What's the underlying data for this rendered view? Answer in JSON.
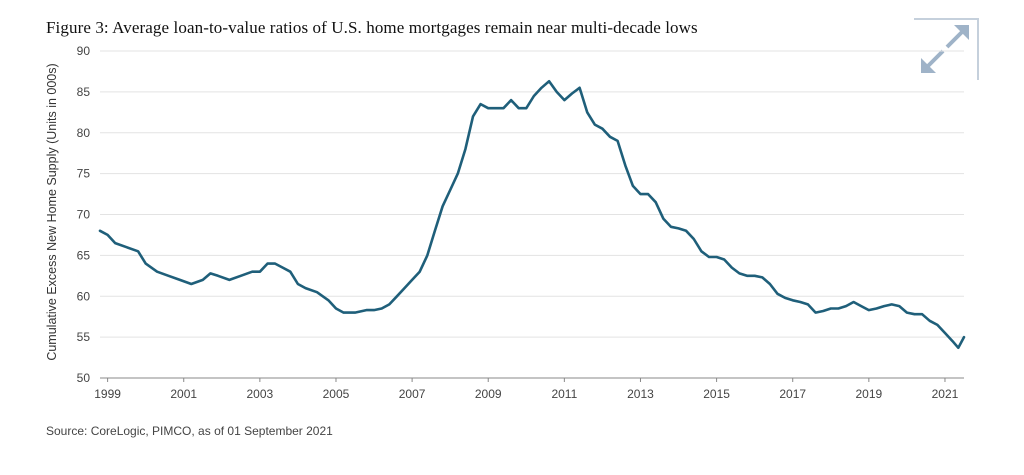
{
  "figure": {
    "title": "Figure 3: Average loan-to-value ratios of U.S. home mortgages remain near multi-decade lows",
    "source": "Source: CoreLogic, PIMCO, as of 01 September 2021",
    "expand_icon": "expand-arrows-icon"
  },
  "chart_data": {
    "type": "line",
    "title": "Figure 3: Average loan-to-value ratios of U.S. home mortgages remain near multi-decade lows",
    "xlabel": "",
    "ylabel": "Cumulative Excess New Home Supply (Units in 000s)",
    "xlim": [
      1998.8,
      2021.5
    ],
    "ylim": [
      50,
      90
    ],
    "x_ticks": [
      "1999",
      "2001",
      "2003",
      "2005",
      "2007",
      "2009",
      "2011",
      "2013",
      "2015",
      "2017",
      "2019",
      "2021"
    ],
    "y_ticks": [
      "50",
      "55",
      "60",
      "65",
      "70",
      "75",
      "80",
      "85",
      "90"
    ],
    "grid": "horizontal",
    "line_color": "#1f5f7a",
    "series": [
      {
        "x": [
          1998.8,
          1999.0,
          1999.2,
          1999.5,
          1999.8,
          2000.0,
          2000.3,
          2000.6,
          2000.9,
          2001.2,
          2001.5,
          2001.7,
          2001.9,
          2002.2,
          2002.5,
          2002.8,
          2003.0,
          2003.2,
          2003.4,
          2003.6,
          2003.8,
          2004.0,
          2004.2,
          2004.5,
          2004.8,
          2005.0,
          2005.2,
          2005.5,
          2005.8,
          2006.0,
          2006.2,
          2006.4,
          2006.6,
          2006.8,
          2007.0,
          2007.2,
          2007.4,
          2007.6,
          2007.8,
          2008.0,
          2008.2,
          2008.4,
          2008.6,
          2008.8,
          2009.0,
          2009.2,
          2009.4,
          2009.6,
          2009.8,
          2010.0,
          2010.2,
          2010.4,
          2010.6,
          2010.8,
          2011.0,
          2011.2,
          2011.4,
          2011.6,
          2011.8,
          2012.0,
          2012.2,
          2012.4,
          2012.6,
          2012.8,
          2013.0,
          2013.2,
          2013.4,
          2013.6,
          2013.8,
          2014.0,
          2014.2,
          2014.4,
          2014.6,
          2014.8,
          2015.0,
          2015.2,
          2015.4,
          2015.6,
          2015.8,
          2016.0,
          2016.2,
          2016.4,
          2016.6,
          2016.8,
          2017.0,
          2017.2,
          2017.4,
          2017.6,
          2017.8,
          2018.0,
          2018.2,
          2018.4,
          2018.6,
          2018.8,
          2019.0,
          2019.2,
          2019.4,
          2019.6,
          2019.8,
          2020.0,
          2020.2,
          2020.4,
          2020.6,
          2020.8,
          2021.0,
          2021.2,
          2021.35,
          2021.5
        ],
        "y": [
          68.0,
          67.5,
          66.5,
          66.0,
          65.5,
          64.0,
          63.0,
          62.5,
          62.0,
          61.5,
          62.0,
          62.8,
          62.5,
          62.0,
          62.5,
          63.0,
          63.0,
          64.0,
          64.0,
          63.5,
          63.0,
          61.5,
          61.0,
          60.5,
          59.5,
          58.5,
          58.0,
          58.0,
          58.3,
          58.3,
          58.5,
          59.0,
          60.0,
          61.0,
          62.0,
          63.0,
          65.0,
          68.0,
          71.0,
          73.0,
          75.0,
          78.0,
          82.0,
          83.5,
          83.0,
          83.0,
          83.0,
          84.0,
          83.0,
          83.0,
          84.5,
          85.5,
          86.3,
          85.0,
          84.0,
          84.8,
          85.5,
          82.5,
          81.0,
          80.5,
          79.5,
          79.0,
          76.0,
          73.5,
          72.5,
          72.5,
          71.5,
          69.5,
          68.5,
          68.3,
          68.0,
          67.0,
          65.5,
          64.8,
          64.8,
          64.5,
          63.5,
          62.8,
          62.5,
          62.5,
          62.3,
          61.5,
          60.3,
          59.8,
          59.5,
          59.3,
          59.0,
          58.0,
          58.2,
          58.5,
          58.5,
          58.8,
          59.3,
          58.8,
          58.3,
          58.5,
          58.8,
          59.0,
          58.8,
          58.0,
          57.8,
          57.8,
          57.0,
          56.5,
          55.5,
          54.5,
          53.7,
          55.0
        ]
      }
    ]
  }
}
